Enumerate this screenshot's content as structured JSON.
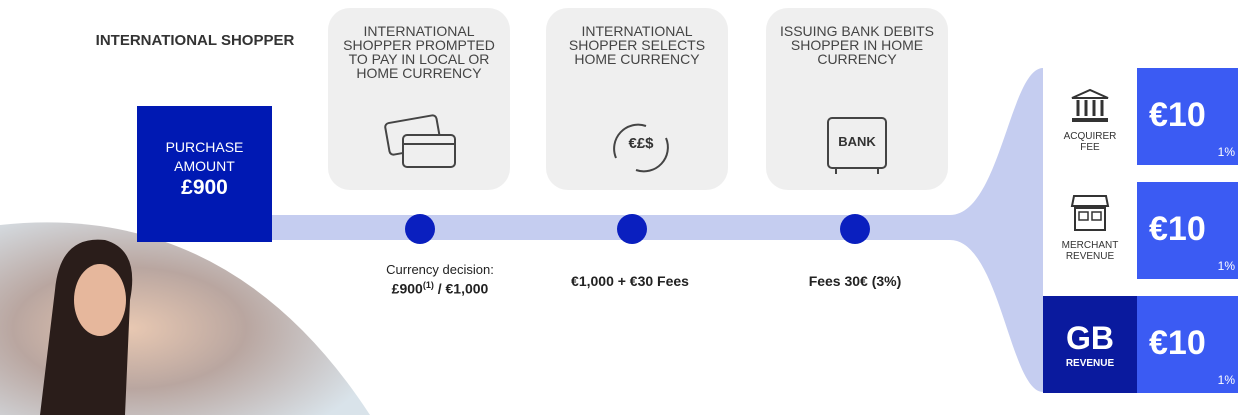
{
  "shopper": {
    "title": "INTERNATIONAL SHOPPER"
  },
  "purchase": {
    "label": "PURCHASE AMOUNT",
    "amount": "£900"
  },
  "steps": [
    {
      "title": "INTERNATIONAL SHOPPER PROMPTED TO PAY IN LOCAL OR HOME CURRENCY"
    },
    {
      "title": "INTERNATIONAL SHOPPER SELECTS HOME CURRENCY",
      "icon_text": "€£$"
    },
    {
      "title": "ISSUING BANK DEBITS SHOPPER IN HOME CURRENCY",
      "icon_text": "BANK"
    }
  ],
  "timeline": [
    {
      "caption": "Currency decision:",
      "value": "£900",
      "note": "(1)",
      "suffix": "/ €1,000"
    },
    {
      "value": "€1,000 + €30 Fees"
    },
    {
      "value": "Fees 30€ (3%)"
    }
  ],
  "revenue": [
    {
      "label": "ACQUIRER FEE",
      "amount": "€10",
      "percent": "1%"
    },
    {
      "label": "MERCHANT REVENUE",
      "amount": "€10",
      "percent": "1%"
    },
    {
      "logo": "GB",
      "label": "REVENUE",
      "amount": "€10",
      "percent": "1%"
    }
  ]
}
